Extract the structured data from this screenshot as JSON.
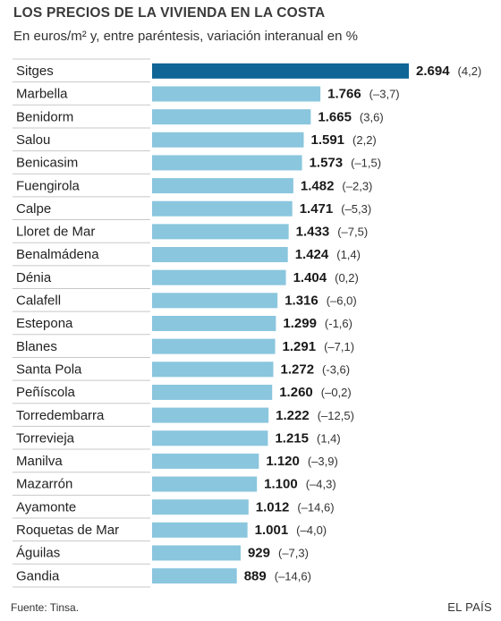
{
  "title": "LOS PRECIOS DE LA VIVIENDA EN LA COSTA",
  "subtitle": "En euros/m² y, entre paréntesis, variación interanual en %",
  "source": "Fuente: Tinsa.",
  "credit": "EL PAÍS",
  "colors": {
    "highlight": "#0e6596",
    "bar": "#8ac6de",
    "separator": "#c8c8c8"
  },
  "chart_data": {
    "type": "bar",
    "orientation": "horizontal",
    "title": "LOS PRECIOS DE LA VIVIENDA EN LA COSTA",
    "subtitle": "En euros/m² y, entre paréntesis, variación interanual en %",
    "highlighted_category": "Sitges",
    "categories": [
      "Sitges",
      "Marbella",
      "Benidorm",
      "Salou",
      "Benicasim",
      "Fuengirola",
      "Calpe",
      "Lloret de Mar",
      "Benalmádena",
      "Dénia",
      "Calafell",
      "Estepona",
      "Blanes",
      "Santa Pola",
      "Peñíscola",
      "Torredembarra",
      "Torrevieja",
      "Manilva",
      "Mazarrón",
      "Ayamonte",
      "Roquetas de Mar",
      "Águilas",
      "Gandia"
    ],
    "values": [
      2694,
      1766,
      1665,
      1591,
      1573,
      1482,
      1471,
      1433,
      1424,
      1404,
      1316,
      1299,
      1291,
      1272,
      1260,
      1222,
      1215,
      1120,
      1100,
      1012,
      1001,
      929,
      889
    ],
    "value_labels": [
      "2.694",
      "1.766",
      "1.665",
      "1.591",
      "1.573",
      "1.482",
      "1.471",
      "1.433",
      "1.424",
      "1.404",
      "1.316",
      "1.299",
      "1.291",
      "1.272",
      "1.260",
      "1.222",
      "1.215",
      "1.120",
      "1.100",
      "1.012",
      "1.001",
      "929",
      "889"
    ],
    "variation_labels": [
      "(4,2)",
      "(–3,7)",
      "(3,6)",
      "(2,2)",
      "(–1,5)",
      "(–2,3)",
      "(–5,3)",
      "(–7,5)",
      "(1,4)",
      "(0,2)",
      "(–6,0)",
      "(-1,6)",
      "(–7,1)",
      "(-3,6)",
      "(–0,2)",
      "(–12,5)",
      "(1,4)",
      "(–3,9)",
      "(–4,3)",
      "(–14,6)",
      "(–4,0)",
      "(–7,3)",
      "(–14,6)"
    ],
    "variation_pct": [
      4.2,
      -3.7,
      3.6,
      2.2,
      -1.5,
      -2.3,
      -5.3,
      -7.5,
      1.4,
      0.2,
      -6.0,
      -1.6,
      -7.1,
      -3.6,
      -0.2,
      -12.5,
      1.4,
      -3.9,
      -4.3,
      -14.6,
      -4.0,
      -7.3,
      -14.6
    ],
    "xlabel": "",
    "ylabel": "",
    "grid": false,
    "legend": "none"
  }
}
